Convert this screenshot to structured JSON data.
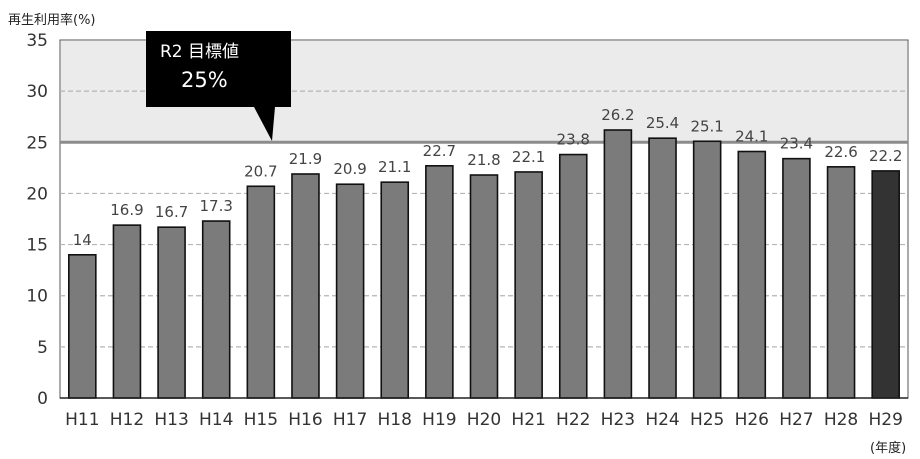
{
  "chart_data": {
    "type": "bar",
    "ylabel": "再生利用率(%)",
    "xunit": "(年度)",
    "ylim": [
      0,
      35
    ],
    "yticks": [
      0,
      5,
      10,
      15,
      20,
      25,
      30,
      35
    ],
    "grid": true,
    "categories": [
      "H11",
      "H12",
      "H13",
      "H14",
      "H15",
      "H16",
      "H17",
      "H18",
      "H19",
      "H20",
      "H21",
      "H22",
      "H23",
      "H24",
      "H25",
      "H26",
      "H27",
      "H28",
      "H29"
    ],
    "values": [
      14,
      16.9,
      16.7,
      17.3,
      20.7,
      21.9,
      20.9,
      21.1,
      22.7,
      21.8,
      22.1,
      23.8,
      26.2,
      25.4,
      25.1,
      24.1,
      23.4,
      22.6,
      22.2
    ],
    "value_labels": [
      "14",
      "16.9",
      "16.7",
      "17.3",
      "20.7",
      "21.9",
      "20.9",
      "21.1",
      "22.7",
      "21.8",
      "22.1",
      "23.8",
      "26.2",
      "25.4",
      "25.1",
      "24.1",
      "23.4",
      "22.6",
      "22.2"
    ],
    "highlight_index": 18,
    "target": {
      "value": 25,
      "label_line1": "R2  目標値",
      "label_line2": "25%"
    },
    "colors": {
      "bar": "#7b7b7b",
      "bar_highlight": "#333333",
      "bar_edge": "#111111",
      "target_line": "#8c8c8c",
      "target_band": "#ebebeb",
      "callout_bg": "#000000",
      "grid": "#b5b5b5"
    }
  }
}
